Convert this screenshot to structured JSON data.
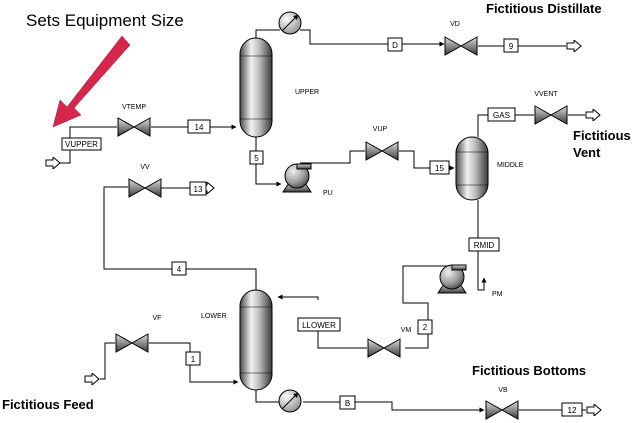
{
  "annotation": {
    "text": "Sets Equipment Size",
    "arrow_color": "#d6264b"
  },
  "callouts": {
    "distillate": "Fictitious Distillate",
    "vent_line1": "Fictitious",
    "vent_line2": "Vent",
    "bottoms": "Fictitious Bottoms",
    "feed": "Fictitious Feed"
  },
  "units": {
    "upper": "UPPER",
    "middle": "MIDDLE",
    "lower": "LOWER",
    "pu": "PU",
    "pm": "PM"
  },
  "valves": {
    "vtemp": "VTEMP",
    "vd": "VD",
    "vvent": "VVENT",
    "vup": "VUP",
    "vv": "VV",
    "vf": "VF",
    "vm": "VM",
    "vb": "VB"
  },
  "streams": {
    "s14": "14",
    "s5": "5",
    "d": "D",
    "s9": "9",
    "gas": "GAS",
    "s15": "15",
    "s13": "13",
    "s4": "4",
    "rmid": "RMID",
    "llower": "LLOWER",
    "s2": "2",
    "s1": "1",
    "b": "B",
    "s12": "12",
    "vupper": "VUPPER"
  }
}
